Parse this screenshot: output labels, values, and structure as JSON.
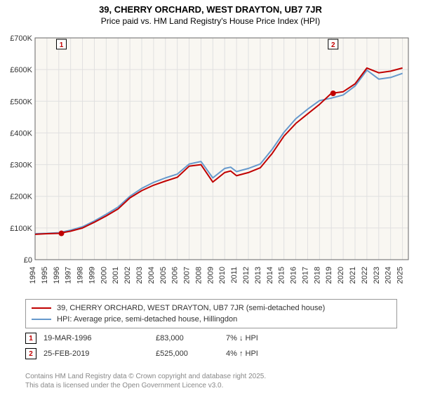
{
  "title": "39, CHERRY ORCHARD, WEST DRAYTON, UB7 7JR",
  "subtitle": "Price paid vs. HM Land Registry's House Price Index (HPI)",
  "chart": {
    "type": "line",
    "background_color": "#f9f7f2",
    "grid_color": "#e0e0e0",
    "axis_color": "#666666",
    "x_years": [
      1994,
      1995,
      1996,
      1997,
      1998,
      1999,
      2000,
      2001,
      2002,
      2003,
      2004,
      2005,
      2006,
      2007,
      2008,
      2009,
      2010,
      2011,
      2012,
      2013,
      2014,
      2015,
      2016,
      2017,
      2018,
      2019,
      2020,
      2021,
      2022,
      2023,
      2024,
      2025
    ],
    "x_min": 1994,
    "x_max": 2025.5,
    "y_min": 0,
    "y_max": 700000,
    "y_ticks": [
      0,
      100000,
      200000,
      300000,
      400000,
      500000,
      600000,
      700000
    ],
    "y_tick_labels": [
      "£0",
      "£100K",
      "£200K",
      "£300K",
      "£400K",
      "£500K",
      "£600K",
      "£700K"
    ],
    "tick_fontsize": 11,
    "line_width": 2,
    "series": [
      {
        "name": "39, CHERRY ORCHARD, WEST DRAYTON, UB7 7JR (semi-detached house)",
        "color": "#c00000",
        "x": [
          1994,
          1995,
          1996,
          1997,
          1998,
          1999,
          2000,
          2001,
          2002,
          2003,
          2004,
          2005,
          2006,
          2007,
          2008,
          2009,
          2010,
          2010.5,
          2011,
          2012,
          2013,
          2014,
          2015,
          2016,
          2017,
          2018,
          2019,
          2020,
          2021,
          2022,
          2023,
          2024,
          2025
        ],
        "y": [
          80000,
          82000,
          83000,
          90000,
          100000,
          118000,
          138000,
          160000,
          195000,
          218000,
          235000,
          248000,
          260000,
          295000,
          300000,
          245000,
          275000,
          280000,
          265000,
          275000,
          290000,
          335000,
          390000,
          430000,
          460000,
          490000,
          525000,
          530000,
          555000,
          605000,
          590000,
          595000,
          605000
        ]
      },
      {
        "name": "HPI: Average price, semi-detached house, Hillingdon",
        "color": "#6699cc",
        "x": [
          1994,
          1995,
          1996,
          1997,
          1998,
          1999,
          2000,
          2001,
          2002,
          2003,
          2004,
          2005,
          2006,
          2007,
          2008,
          2009,
          2010,
          2010.5,
          2011,
          2012,
          2013,
          2014,
          2015,
          2016,
          2017,
          2018,
          2019,
          2020,
          2021,
          2022,
          2023,
          2024,
          2025
        ],
        "y": [
          82000,
          83000,
          85000,
          93000,
          104000,
          122000,
          143000,
          166000,
          200000,
          225000,
          244000,
          258000,
          270000,
          302000,
          310000,
          258000,
          288000,
          292000,
          278000,
          288000,
          302000,
          348000,
          402000,
          445000,
          475000,
          502000,
          510000,
          520000,
          548000,
          598000,
          570000,
          575000,
          588000
        ]
      }
    ],
    "sale_markers": [
      {
        "num": "1",
        "year": 1996.22,
        "value": 83000,
        "box_color": "#c00000"
      },
      {
        "num": "2",
        "year": 2019.15,
        "value": 525000,
        "box_color": "#c00000"
      }
    ]
  },
  "legend": {
    "items": [
      {
        "label": "39, CHERRY ORCHARD, WEST DRAYTON, UB7 7JR (semi-detached house)",
        "color": "#c00000"
      },
      {
        "label": "HPI: Average price, semi-detached house, Hillingdon",
        "color": "#6699cc"
      }
    ]
  },
  "sales": [
    {
      "num": "1",
      "num_color": "#c00000",
      "date": "19-MAR-1996",
      "price": "£83,000",
      "delta": "7% ↓ HPI"
    },
    {
      "num": "2",
      "num_color": "#c00000",
      "date": "25-FEB-2019",
      "price": "£525,000",
      "delta": "4% ↑ HPI"
    }
  ],
  "attribution": {
    "line1": "Contains HM Land Registry data © Crown copyright and database right 2025.",
    "line2": "This data is licensed under the Open Government Licence v3.0."
  }
}
